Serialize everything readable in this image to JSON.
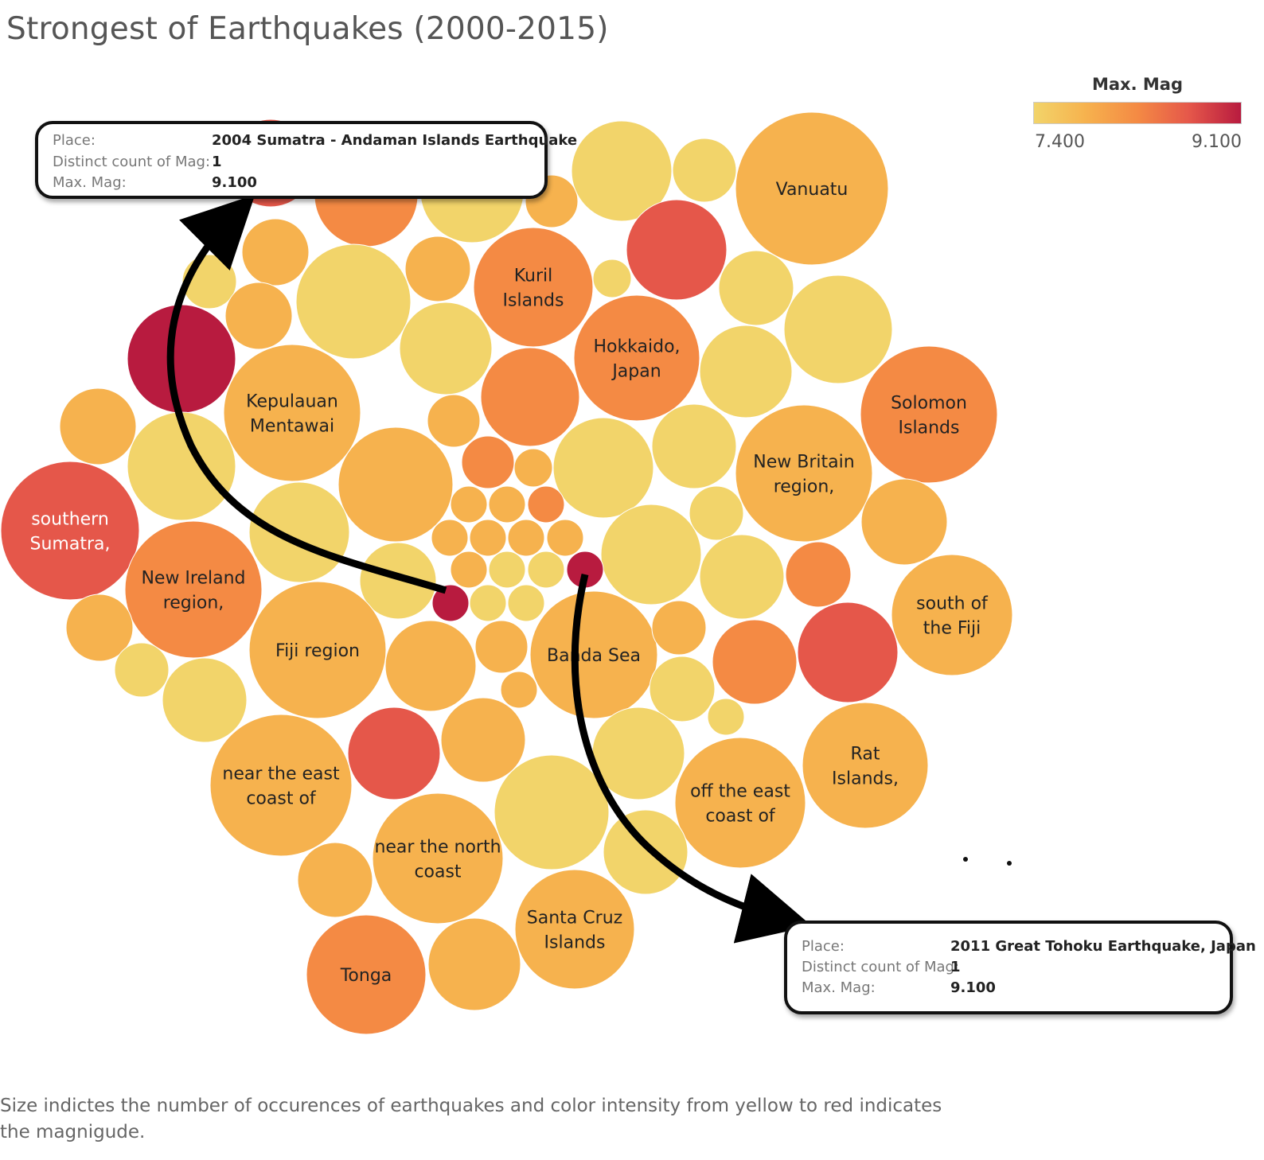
{
  "title": "Strongest of Earthquakes (2000-2015)",
  "legend": {
    "title": "Max. Mag",
    "min_label": "7.400",
    "max_label": "9.100",
    "colors": [
      "#f2d46a",
      "#f6b24e",
      "#f48a44",
      "#e5574a",
      "#b81b3f"
    ]
  },
  "chart_data": {
    "type": "packed-bubble",
    "title": "Strongest of Earthquakes (2000-2015)",
    "size_field": "Number of occurrences",
    "color_field": "Max. Mag",
    "color_range": [
      7.4,
      9.1
    ],
    "labeled_bubbles": [
      {
        "label": "Vanuatu"
      },
      {
        "label": "Kuril Islands"
      },
      {
        "label": "Hokkaido, Japan"
      },
      {
        "label": "Kepulauan Mentawai"
      },
      {
        "label": "Solomon Islands"
      },
      {
        "label": "New Britain region,"
      },
      {
        "label": "southern Sumatra,"
      },
      {
        "label": "New Ireland region,"
      },
      {
        "label": "south of the Fiji"
      },
      {
        "label": "Fiji region"
      },
      {
        "label": "Banda Sea"
      },
      {
        "label": "near the east coast of"
      },
      {
        "label": "Rat Islands,"
      },
      {
        "label": "off the east coast of"
      },
      {
        "label": "near the north coast"
      },
      {
        "label": "Santa Cruz Islands"
      },
      {
        "label": "Tonga"
      }
    ],
    "highlighted": [
      {
        "place": "2004 Sumatra - Andaman Islands Earthquake",
        "distinct_count_of_mag": 1,
        "max_mag": 9.1
      },
      {
        "place": "2011 Great Tohoku Earthquake, Japan",
        "distinct_count_of_mag": 1,
        "max_mag": 9.1
      }
    ]
  },
  "tooltips": [
    {
      "place_key": "Place:",
      "place_val": "2004 Sumatra - Andaman Islands Earthquake",
      "count_key": "Distinct count of Mag:",
      "count_val": "1",
      "mag_key": "Max. Mag:",
      "mag_val": "9.100"
    },
    {
      "place_key": "Place:",
      "place_val": "2011 Great Tohoku Earthquake, Japan",
      "count_key": "Distinct count of Mag:",
      "count_val": "1",
      "mag_key": "Max. Mag:",
      "mag_val": "9.100"
    }
  ],
  "caption": "Size indictes the number of occurences of earthquakes and color intensity from yellow to red indicates the magnigude."
}
